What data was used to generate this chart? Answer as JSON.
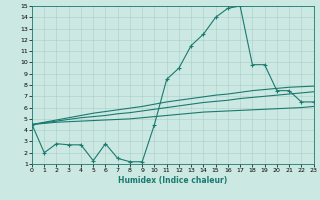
{
  "xlabel": "Humidex (Indice chaleur)",
  "xlim": [
    0,
    23
  ],
  "ylim": [
    1,
    15
  ],
  "xticks": [
    0,
    1,
    2,
    3,
    4,
    5,
    6,
    7,
    8,
    9,
    10,
    11,
    12,
    13,
    14,
    15,
    16,
    17,
    18,
    19,
    20,
    21,
    22,
    23
  ],
  "yticks": [
    1,
    2,
    3,
    4,
    5,
    6,
    7,
    8,
    9,
    10,
    11,
    12,
    13,
    14,
    15
  ],
  "bg_color": "#cce8e3",
  "line_color": "#1a7a6e",
  "grid_color": "#aaceca",
  "zigzag_x": [
    0,
    1,
    2,
    3,
    4,
    5,
    6,
    7,
    8,
    9,
    10,
    11,
    12,
    13,
    14,
    15,
    16,
    17,
    18,
    19,
    20,
    21,
    22,
    23
  ],
  "zigzag_y": [
    4.5,
    2.0,
    2.8,
    2.7,
    2.7,
    1.3,
    2.8,
    1.5,
    1.2,
    1.2,
    4.5,
    8.5,
    9.5,
    11.5,
    12.5,
    14.0,
    14.8,
    15.0,
    9.8,
    9.8,
    7.5,
    7.5,
    6.5,
    6.5
  ],
  "curve1_x": [
    0,
    1,
    2,
    3,
    4,
    5,
    6,
    7,
    8,
    9,
    10,
    11,
    12,
    13,
    14,
    15,
    16,
    17,
    18,
    19,
    20,
    21,
    22,
    23
  ],
  "curve1_y": [
    4.5,
    4.6,
    4.7,
    4.75,
    4.8,
    4.85,
    4.9,
    4.95,
    5.0,
    5.1,
    5.2,
    5.3,
    5.4,
    5.5,
    5.6,
    5.65,
    5.7,
    5.75,
    5.8,
    5.85,
    5.9,
    5.95,
    6.0,
    6.1
  ],
  "curve2_x": [
    0,
    1,
    2,
    3,
    4,
    5,
    6,
    7,
    8,
    9,
    10,
    11,
    12,
    13,
    14,
    15,
    16,
    17,
    18,
    19,
    20,
    21,
    22,
    23
  ],
  "curve2_y": [
    4.5,
    4.65,
    4.8,
    4.95,
    5.1,
    5.2,
    5.3,
    5.45,
    5.55,
    5.7,
    5.85,
    6.0,
    6.15,
    6.3,
    6.45,
    6.55,
    6.65,
    6.8,
    6.9,
    7.0,
    7.1,
    7.2,
    7.3,
    7.4
  ],
  "curve3_x": [
    0,
    1,
    2,
    3,
    4,
    5,
    6,
    7,
    8,
    9,
    10,
    11,
    12,
    13,
    14,
    15,
    16,
    17,
    18,
    19,
    20,
    21,
    22,
    23
  ],
  "curve3_y": [
    4.5,
    4.7,
    4.9,
    5.1,
    5.3,
    5.5,
    5.65,
    5.8,
    5.95,
    6.1,
    6.3,
    6.5,
    6.65,
    6.8,
    6.95,
    7.1,
    7.2,
    7.35,
    7.5,
    7.6,
    7.7,
    7.8,
    7.85,
    7.9
  ]
}
